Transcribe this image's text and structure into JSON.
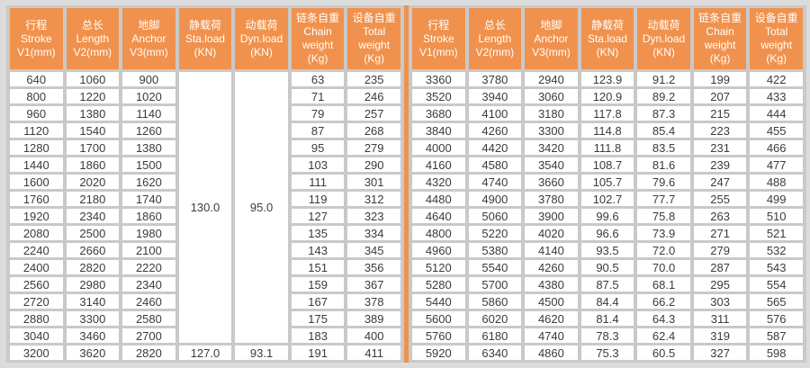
{
  "colors": {
    "header_orange": "#F0924D",
    "divider_orange": "#F0924D",
    "page_background": "#DCDCDC",
    "grid_line": "#C9C9C9",
    "cell_background": "#FFFFFF",
    "header_text": "#FFFFFF",
    "cell_text": "#3B3B3B"
  },
  "columns": [
    {
      "id": "stroke",
      "lines": [
        "行程",
        "Stroke",
        "V1(mm)"
      ]
    },
    {
      "id": "length",
      "lines": [
        "总长",
        "Length",
        "V2(mm)"
      ]
    },
    {
      "id": "anchor",
      "lines": [
        "地脚",
        "Anchor",
        "V3(mm)"
      ]
    },
    {
      "id": "static-load",
      "lines": [
        "静载荷",
        "Sta.load",
        "(KN)"
      ]
    },
    {
      "id": "dynamic-load",
      "lines": [
        "动载荷",
        "Dyn.load",
        "(KN)"
      ]
    },
    {
      "id": "chain-weight",
      "lines": [
        "链条自重",
        "Chain",
        "weight",
        "(Kg)"
      ]
    },
    {
      "id": "total-weight",
      "lines": [
        "设备自重",
        "Total",
        "weight",
        "(Kg)"
      ]
    }
  ],
  "left_table": {
    "merged_cells": [
      {
        "column": 3,
        "row": 0,
        "rowspan": 16,
        "value": "130.0"
      },
      {
        "column": 4,
        "row": 0,
        "rowspan": 16,
        "value": "95.0"
      }
    ],
    "rows": [
      [
        "640",
        "1060",
        "900",
        null,
        null,
        "63",
        "235"
      ],
      [
        "800",
        "1220",
        "1020",
        null,
        null,
        "71",
        "246"
      ],
      [
        "960",
        "1380",
        "1140",
        null,
        null,
        "79",
        "257"
      ],
      [
        "1120",
        "1540",
        "1260",
        null,
        null,
        "87",
        "268"
      ],
      [
        "1280",
        "1700",
        "1380",
        null,
        null,
        "95",
        "279"
      ],
      [
        "1440",
        "1860",
        "1500",
        null,
        null,
        "103",
        "290"
      ],
      [
        "1600",
        "2020",
        "1620",
        null,
        null,
        "111",
        "301"
      ],
      [
        "1760",
        "2180",
        "1740",
        null,
        null,
        "119",
        "312"
      ],
      [
        "1920",
        "2340",
        "1860",
        null,
        null,
        "127",
        "323"
      ],
      [
        "2080",
        "2500",
        "1980",
        null,
        null,
        "135",
        "334"
      ],
      [
        "2240",
        "2660",
        "2100",
        null,
        null,
        "143",
        "345"
      ],
      [
        "2400",
        "2820",
        "2220",
        null,
        null,
        "151",
        "356"
      ],
      [
        "2560",
        "2980",
        "2340",
        null,
        null,
        "159",
        "367"
      ],
      [
        "2720",
        "3140",
        "2460",
        null,
        null,
        "167",
        "378"
      ],
      [
        "2880",
        "3300",
        "2580",
        null,
        null,
        "175",
        "389"
      ],
      [
        "3040",
        "3460",
        "2700",
        null,
        null,
        "183",
        "400"
      ],
      [
        "3200",
        "3620",
        "2820",
        "127.0",
        "93.1",
        "191",
        "411"
      ]
    ]
  },
  "right_table": {
    "merged_cells": [],
    "rows": [
      [
        "3360",
        "3780",
        "2940",
        "123.9",
        "91.2",
        "199",
        "422"
      ],
      [
        "3520",
        "3940",
        "3060",
        "120.9",
        "89.2",
        "207",
        "433"
      ],
      [
        "3680",
        "4100",
        "3180",
        "117.8",
        "87.3",
        "215",
        "444"
      ],
      [
        "3840",
        "4260",
        "3300",
        "114.8",
        "85.4",
        "223",
        "455"
      ],
      [
        "4000",
        "4420",
        "3420",
        "111.8",
        "83.5",
        "231",
        "466"
      ],
      [
        "4160",
        "4580",
        "3540",
        "108.7",
        "81.6",
        "239",
        "477"
      ],
      [
        "4320",
        "4740",
        "3660",
        "105.7",
        "79.6",
        "247",
        "488"
      ],
      [
        "4480",
        "4900",
        "3780",
        "102.7",
        "77.7",
        "255",
        "499"
      ],
      [
        "4640",
        "5060",
        "3900",
        "99.6",
        "75.8",
        "263",
        "510"
      ],
      [
        "4800",
        "5220",
        "4020",
        "96.6",
        "73.9",
        "271",
        "521"
      ],
      [
        "4960",
        "5380",
        "4140",
        "93.5",
        "72.0",
        "279",
        "532"
      ],
      [
        "5120",
        "5540",
        "4260",
        "90.5",
        "70.0",
        "287",
        "543"
      ],
      [
        "5280",
        "5700",
        "4380",
        "87.5",
        "68.1",
        "295",
        "554"
      ],
      [
        "5440",
        "5860",
        "4500",
        "84.4",
        "66.2",
        "303",
        "565"
      ],
      [
        "5600",
        "6020",
        "4620",
        "81.4",
        "64.3",
        "311",
        "576"
      ],
      [
        "5760",
        "6180",
        "4740",
        "78.3",
        "62.4",
        "319",
        "587"
      ],
      [
        "5920",
        "6340",
        "4860",
        "75.3",
        "60.5",
        "327",
        "598"
      ]
    ]
  }
}
